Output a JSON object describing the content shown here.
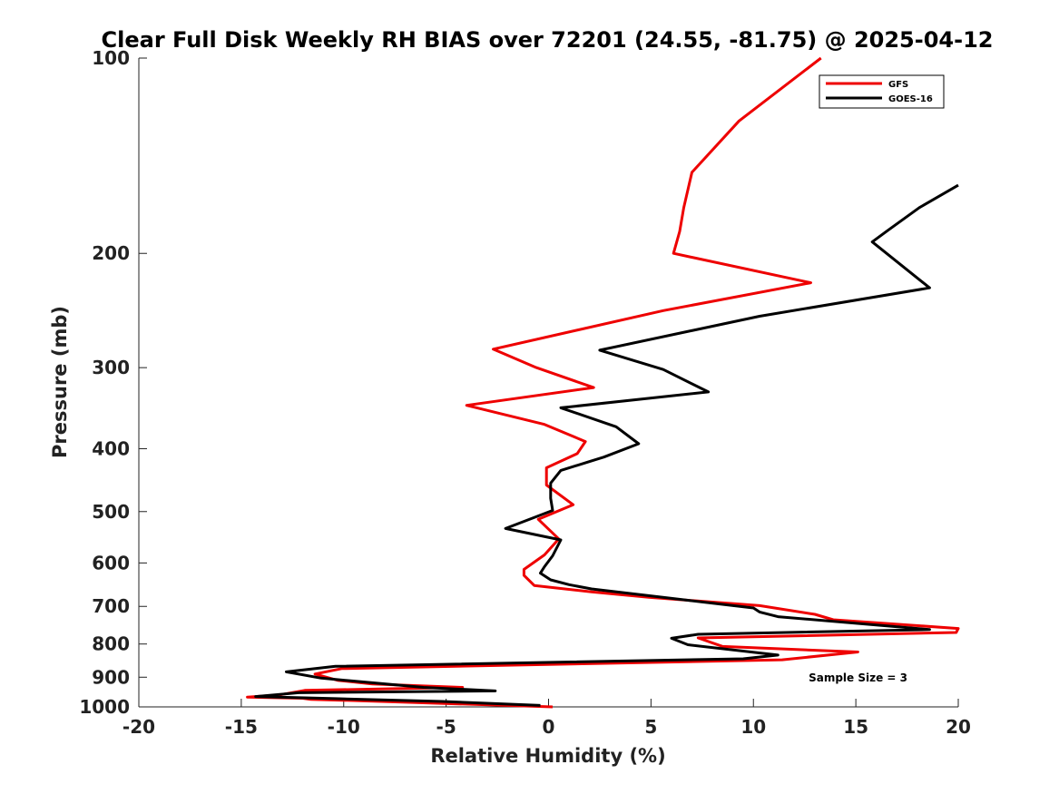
{
  "chart_data": {
    "type": "line",
    "title": "Clear Full Disk Weekly RH BIAS over 72201 (24.55, -81.75) @ 2025-04-12",
    "xlabel": "Relative Humidity (%)",
    "ylabel": "Pressure (mb)",
    "xlim": [
      -20,
      20
    ],
    "ylim": [
      1000,
      100
    ],
    "yscale": "log",
    "grid": false,
    "x_ticks": [
      "-20",
      "-15",
      "-10",
      "-5",
      "0",
      "5",
      "10",
      "15",
      "20"
    ],
    "y_ticks": [
      "100",
      "200",
      "300",
      "400",
      "500",
      "600",
      "700",
      "800",
      "900",
      "1000"
    ],
    "legend": {
      "position": "top-right",
      "entries": [
        "GFS",
        "GOES-16"
      ]
    },
    "annotation": "Sample Size = 3",
    "series": [
      {
        "name": "GFS",
        "color": "#ee0000",
        "points": [
          [
            13.3,
            100
          ],
          [
            9.3,
            125
          ],
          [
            7.0,
            150
          ],
          [
            6.6,
            170
          ],
          [
            6.4,
            185
          ],
          [
            6.1,
            200
          ],
          [
            12.8,
            222
          ],
          [
            5.6,
            245
          ],
          [
            -2.7,
            281
          ],
          [
            -0.6,
            300
          ],
          [
            2.2,
            322
          ],
          [
            -4.0,
            343
          ],
          [
            -0.2,
            367
          ],
          [
            1.8,
            390
          ],
          [
            1.4,
            407
          ],
          [
            -0.1,
            428
          ],
          [
            -0.1,
            455
          ],
          [
            1.2,
            488
          ],
          [
            -0.5,
            514
          ],
          [
            0.5,
            551
          ],
          [
            -0.2,
            583
          ],
          [
            -1.2,
            614
          ],
          [
            -1.2,
            627
          ],
          [
            -0.7,
            650
          ],
          [
            2.1,
            665
          ],
          [
            4.9,
            678
          ],
          [
            10.3,
            698
          ],
          [
            13.0,
            720
          ],
          [
            13.9,
            734
          ],
          [
            20.0,
            757
          ],
          [
            19.9,
            768
          ],
          [
            7.3,
            783
          ],
          [
            8.5,
            807
          ],
          [
            15.1,
            823
          ],
          [
            11.4,
            846
          ],
          [
            -10.1,
            873
          ],
          [
            -11.4,
            890
          ],
          [
            -10.3,
            910
          ],
          [
            -8.6,
            922
          ],
          [
            -4.2,
            933
          ],
          [
            -11.9,
            943
          ],
          [
            -13.1,
            958
          ],
          [
            -14.7,
            966
          ],
          [
            -12.0,
            970
          ],
          [
            -11.6,
            974
          ],
          [
            -9.4,
            978
          ],
          [
            0.2,
            1000
          ]
        ]
      },
      {
        "name": "GOES-16",
        "color": "#000000",
        "points": [
          [
            20.0,
            157
          ],
          [
            18.1,
            170
          ],
          [
            16.6,
            184
          ],
          [
            15.8,
            192
          ],
          [
            18.6,
            226
          ],
          [
            10.3,
            250
          ],
          [
            2.5,
            282
          ],
          [
            5.6,
            302
          ],
          [
            7.8,
            327
          ],
          [
            0.6,
            346
          ],
          [
            3.3,
            370
          ],
          [
            4.4,
            393
          ],
          [
            2.7,
            412
          ],
          [
            0.6,
            432
          ],
          [
            0.1,
            452
          ],
          [
            0.1,
            477
          ],
          [
            0.2,
            498
          ],
          [
            -2.1,
            531
          ],
          [
            0.6,
            553
          ],
          [
            0.2,
            585
          ],
          [
            -0.2,
            608
          ],
          [
            -0.4,
            622
          ],
          [
            0.1,
            637
          ],
          [
            1.0,
            648
          ],
          [
            2.1,
            658
          ],
          [
            6.8,
            685
          ],
          [
            10.0,
            704
          ],
          [
            10.3,
            714
          ],
          [
            11.2,
            726
          ],
          [
            18.6,
            760
          ],
          [
            7.3,
            773
          ],
          [
            6.0,
            784
          ],
          [
            6.8,
            802
          ],
          [
            11.2,
            832
          ],
          [
            9.5,
            843
          ],
          [
            -10.4,
            866
          ],
          [
            -12.8,
            883
          ],
          [
            -11.1,
            903
          ],
          [
            -6.1,
            933
          ],
          [
            -2.6,
            945
          ],
          [
            -12.2,
            951
          ],
          [
            -14.3,
            964
          ],
          [
            -10.4,
            971
          ],
          [
            -5.2,
            981
          ],
          [
            -0.4,
            995
          ]
        ]
      }
    ]
  }
}
